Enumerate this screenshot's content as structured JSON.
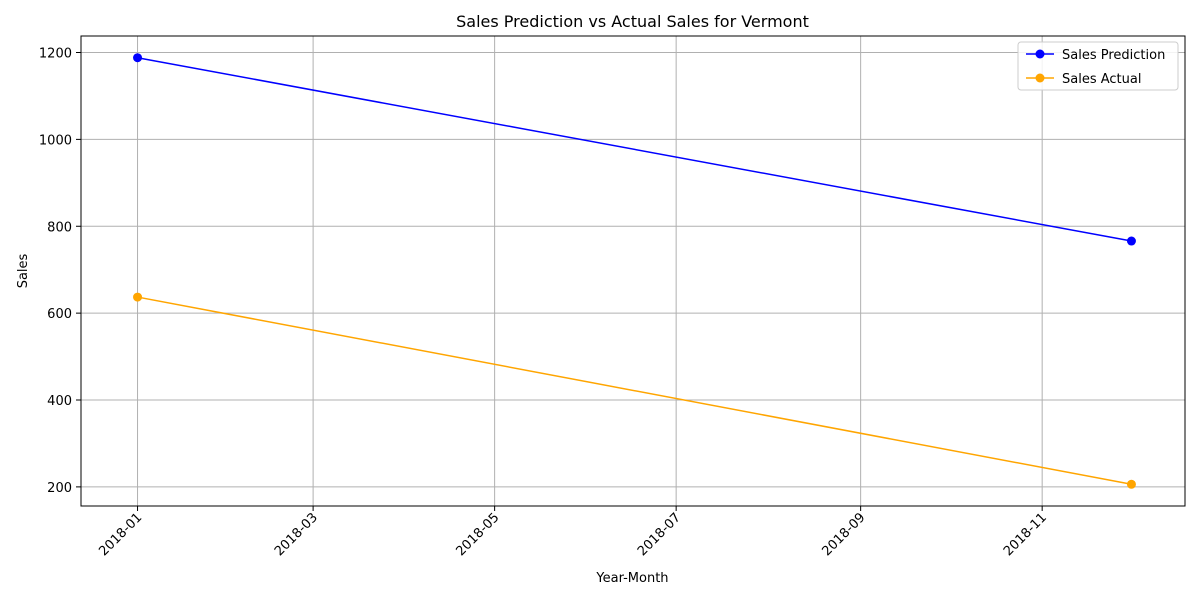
{
  "chart_data": {
    "type": "line",
    "title": "Sales Prediction vs Actual Sales for Vermont",
    "xlabel": "Year-Month",
    "ylabel": "Sales",
    "x_ticks": [
      "2018-01",
      "2018-03",
      "2018-05",
      "2018-07",
      "2018-09",
      "2018-11"
    ],
    "y_ticks": [
      200,
      400,
      600,
      800,
      1000,
      1200
    ],
    "xlim": [
      "2017-12-13",
      "2018-12-19"
    ],
    "ylim": [
      156,
      1238
    ],
    "grid": true,
    "legend_position": "top-right",
    "series": [
      {
        "name": "Sales Prediction",
        "color": "#0000ff",
        "x": [
          "2018-01-01",
          "2018-12-01"
        ],
        "values": [
          1188,
          766
        ]
      },
      {
        "name": "Sales Actual",
        "color": "#ffa500",
        "x": [
          "2018-01-01",
          "2018-12-01"
        ],
        "values": [
          637,
          206
        ]
      }
    ]
  }
}
